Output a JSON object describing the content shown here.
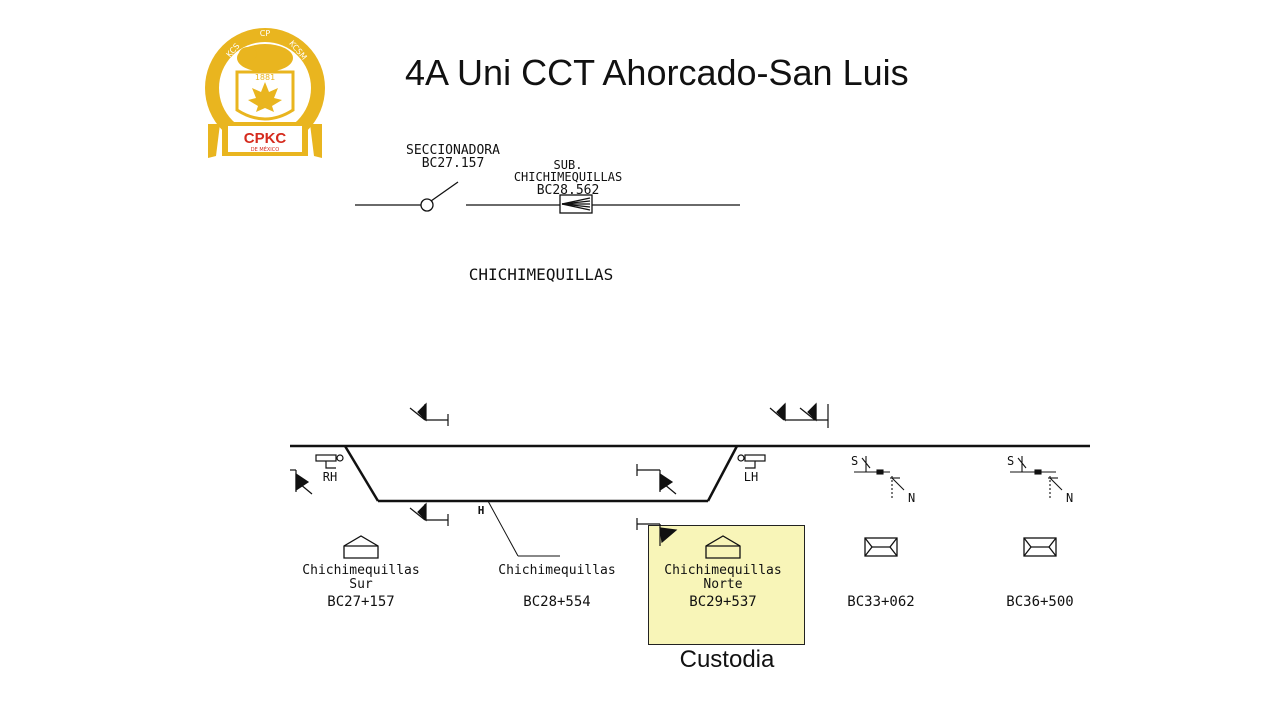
{
  "slide": {
    "title": "4A Uni CCT Ahorcado-San Luis",
    "caption": "Custodia"
  },
  "logo": {
    "brand": "CPKC",
    "subtitle": "DE MÉXICO",
    "arc_left": "KCS",
    "arc_center": "CP",
    "arc_right": "KCSM",
    "year": "1881",
    "gold": "#e9b51f",
    "red": "#d52b1e"
  },
  "schematic": {
    "disconnector_name": "SECCIONADORA",
    "disconnector_km": "BC27.157",
    "substation_line1": "SUB.",
    "substation_line2": "CHICHIMEQUILLAS",
    "substation_km": "BC28.562",
    "yard_name": "CHICHIMEQUILLAS"
  },
  "track": {
    "switch_rh_label": "RH",
    "switch_lh_label": "LH",
    "siding_marker": "H",
    "signal_s_label": "S",
    "signal_n_label": "N"
  },
  "stations": [
    {
      "name_line1": "Chichimequillas",
      "name_line2": "Sur",
      "km": "BC27+157",
      "icon": "house-icon"
    },
    {
      "name_line1": "Chichimequillas",
      "name_line2": "",
      "km": "BC28+554",
      "icon": ""
    },
    {
      "name_line1": "Chichimequillas",
      "name_line2": "Norte",
      "km": "BC29+537",
      "icon": "house-icon"
    },
    {
      "name_line1": "",
      "name_line2": "",
      "km": "BC33+062",
      "icon": "envelope-icon"
    },
    {
      "name_line1": "",
      "name_line2": "",
      "km": "BC36+500",
      "icon": "envelope-icon"
    }
  ],
  "colors": {
    "highlight": "#f8f5b8",
    "line": "#111111"
  }
}
